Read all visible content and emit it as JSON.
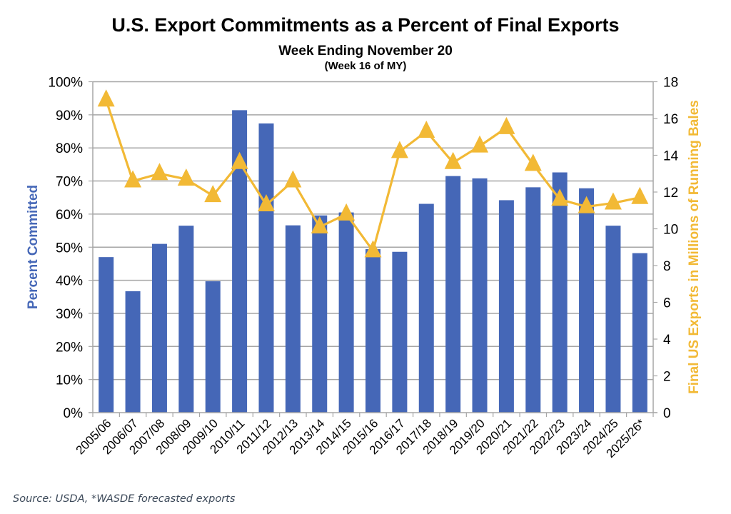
{
  "chart_data": {
    "type": "bar+line",
    "title": "U.S. Export Commitments as a Percent of Final Exports",
    "subtitle": "Week Ending November 20",
    "subtitle2": "(Week 16 of MY)",
    "categories": [
      "2005/06",
      "2006/07",
      "2007/08",
      "2008/09",
      "2009/10",
      "2010/11",
      "2011/12",
      "2012/13",
      "2013/14",
      "2014/15",
      "2015/16",
      "2016/17",
      "2017/18",
      "2018/19",
      "2019/20",
      "2020/21",
      "2021/22",
      "2022/23",
      "2023/24",
      "2024/25",
      "2025/26*"
    ],
    "series": [
      {
        "name": "Percent Committed",
        "type": "bar",
        "axis": "left",
        "color": "#4567B7",
        "values": [
          47.0,
          36.7,
          51.0,
          56.5,
          39.7,
          91.4,
          87.4,
          56.6,
          59.6,
          60.5,
          49.4,
          48.6,
          63.1,
          71.5,
          70.8,
          64.2,
          68.1,
          72.6,
          67.8,
          56.5,
          48.2
        ]
      },
      {
        "name": "Final US Exports in Millions of Running Bales",
        "type": "line",
        "marker": "triangle",
        "axis": "right",
        "color": "#F2B935",
        "values": [
          17.0,
          12.6,
          13.0,
          12.7,
          11.8,
          13.6,
          11.3,
          12.6,
          10.1,
          10.8,
          8.8,
          14.2,
          15.3,
          13.6,
          14.5,
          15.5,
          13.5,
          11.6,
          11.2,
          11.4,
          11.7
        ]
      }
    ],
    "ylabel": "Percent Committed",
    "ylabel_color": "#4567B7",
    "ylim": [
      0,
      100
    ],
    "yticks": [
      "0%",
      "10%",
      "20%",
      "30%",
      "40%",
      "50%",
      "60%",
      "70%",
      "80%",
      "90%",
      "100%"
    ],
    "y2label": "Final US Exports in Millions of Running Bales",
    "y2label_color": "#F2B935",
    "y2lim": [
      0,
      18
    ],
    "y2ticks": [
      "0",
      "2",
      "4",
      "6",
      "8",
      "10",
      "12",
      "14",
      "16",
      "18"
    ],
    "xlabel": "",
    "grid": true,
    "legend": "none"
  },
  "footer": {
    "source": "Source: USDA, *WASDE forecasted exports"
  }
}
